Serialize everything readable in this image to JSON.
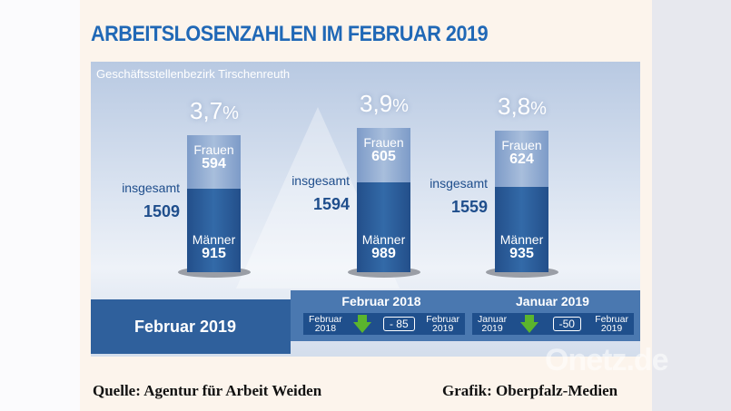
{
  "title": "ARBEITSLOSENZAHLEN IM FEBRUAR 2019",
  "chart_data": {
    "type": "bar",
    "subtitle": "Geschäftsstellenbezirk Tirschenreuth",
    "stacked": true,
    "columns": [
      {
        "rate": "3,7",
        "women_label": "Frauen",
        "women": 594,
        "men_label": "Männer",
        "men": 915,
        "total_label": "insgesamt",
        "total": 1509
      },
      {
        "rate": "3,9",
        "women_label": "Frauen",
        "women": 605,
        "men_label": "Männer",
        "men": 989,
        "total_label": "insgesamt",
        "total": 1594
      },
      {
        "rate": "3,8",
        "women_label": "Frauen",
        "women": 624,
        "men_label": "Männer",
        "men": 935,
        "total_label": "insgesamt",
        "total": 1559
      }
    ],
    "pct_sign": "%",
    "colors": {
      "women": "#a8bedc",
      "men": "#2f609c",
      "decrease": "#5bb52d"
    }
  },
  "current_label": "Februar 2019",
  "comparisons": [
    {
      "header": "Februar 2018",
      "from": [
        "Februar",
        "2018"
      ],
      "delta": "- 85",
      "to": [
        "Februar",
        "2019"
      ]
    },
    {
      "header": "Januar 2019",
      "from": [
        "Januar",
        "2019"
      ],
      "delta": "-50",
      "to": [
        "Februar",
        "2019"
      ]
    }
  ],
  "footer": {
    "source": "Quelle: Agentur für Arbeit Weiden",
    "credit": "Grafik: Oberpfalz-Medien"
  },
  "watermark": "Onetz.de"
}
